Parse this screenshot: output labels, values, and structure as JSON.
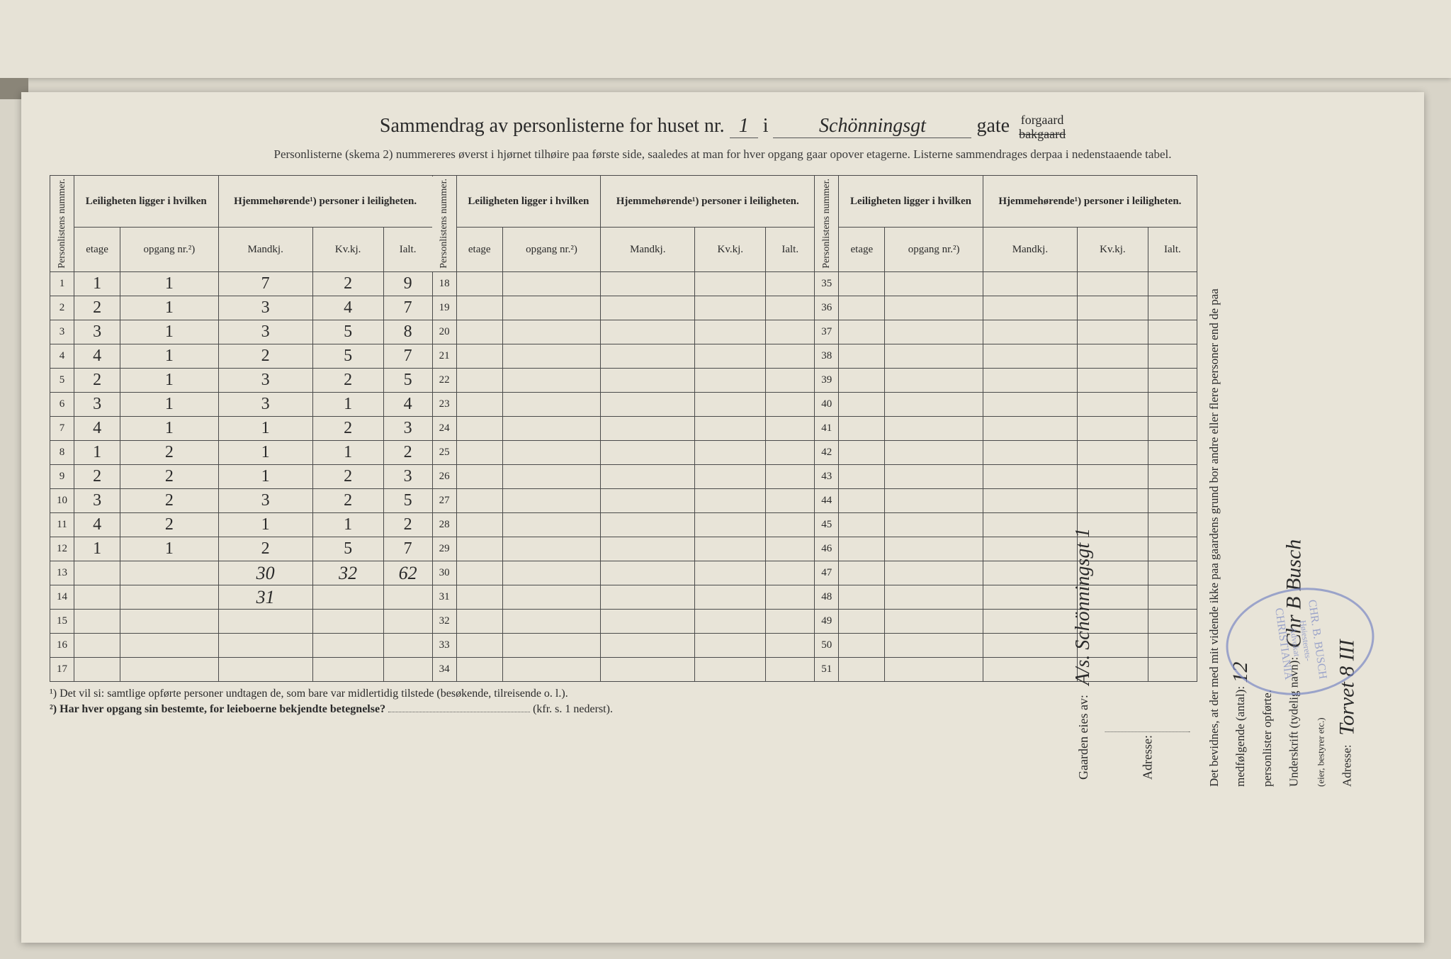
{
  "title": {
    "prefix": "Sammendrag av personlisterne for huset nr.",
    "house_nr": "1",
    "i": "i",
    "street": "Schönningsgt",
    "gate": "gate",
    "forgaard": "forgaard",
    "bakgaard": "bakgaard"
  },
  "subtitle": "Personlisterne (skema 2) nummereres øverst i hjørnet tilhøire paa første side, saaledes at man for hver opgang gaar opover etagerne.  Listerne sammendrages derpaa i nedenstaaende tabel.",
  "headers": {
    "personlistens": "Personlistens nummer.",
    "leiligheten": "Leiligheten ligger i hvilken",
    "hjemme": "Hjemmehørende¹) personer i leiligheten.",
    "etage": "etage",
    "opgang": "opgang nr.²)",
    "mandkj": "Mandkj.",
    "kvkj": "Kv.kj.",
    "ialt": "Ialt."
  },
  "rows": [
    {
      "n": 1,
      "etage": "1",
      "opgang": "1",
      "m": "7",
      "k": "2",
      "i": "9"
    },
    {
      "n": 2,
      "etage": "2",
      "opgang": "1",
      "m": "3",
      "k": "4",
      "i": "7"
    },
    {
      "n": 3,
      "etage": "3",
      "opgang": "1",
      "m": "3",
      "k": "5",
      "i": "8"
    },
    {
      "n": 4,
      "etage": "4",
      "opgang": "1",
      "m": "2",
      "k": "5",
      "i": "7"
    },
    {
      "n": 5,
      "etage": "2",
      "opgang": "1",
      "m": "3",
      "k": "2",
      "i": "5"
    },
    {
      "n": 6,
      "etage": "3",
      "opgang": "1",
      "m": "3",
      "k": "1",
      "i": "4"
    },
    {
      "n": 7,
      "etage": "4",
      "opgang": "1",
      "m": "1",
      "k": "2",
      "i": "3"
    },
    {
      "n": 8,
      "etage": "1",
      "opgang": "2",
      "m": "1",
      "k": "1",
      "i": "2"
    },
    {
      "n": 9,
      "etage": "2",
      "opgang": "2",
      "m": "1",
      "k": "2",
      "i": "3"
    },
    {
      "n": 10,
      "etage": "3",
      "opgang": "2",
      "m": "3",
      "k": "2",
      "i": "5"
    },
    {
      "n": 11,
      "etage": "4",
      "opgang": "2",
      "m": "1",
      "k": "1",
      "i": "2"
    },
    {
      "n": 12,
      "etage": "1",
      "opgang": "1",
      "m": "2",
      "k": "5",
      "i": "7"
    },
    {
      "n": 13,
      "etage": "",
      "opgang": "",
      "m": "30",
      "k": "32",
      "i": "62"
    },
    {
      "n": 14,
      "etage": "",
      "opgang": "",
      "m": "31",
      "k": "",
      "i": ""
    },
    {
      "n": 15,
      "etage": "",
      "opgang": "",
      "m": "",
      "k": "",
      "i": ""
    },
    {
      "n": 16,
      "etage": "",
      "opgang": "",
      "m": "",
      "k": "",
      "i": ""
    },
    {
      "n": 17,
      "etage": "",
      "opgang": "",
      "m": "",
      "k": "",
      "i": ""
    }
  ],
  "col2_nums": [
    18,
    19,
    20,
    21,
    22,
    23,
    24,
    25,
    26,
    27,
    28,
    29,
    30,
    31,
    32,
    33,
    34
  ],
  "col3_nums": [
    35,
    36,
    37,
    38,
    39,
    40,
    41,
    42,
    43,
    44,
    45,
    46,
    47,
    48,
    49,
    50,
    51
  ],
  "footnotes": {
    "f1": "¹)  Det vil si: samtlige opførte personer undtagen de, som bare var midlertidig tilstede (besøkende, tilreisende o. l.).",
    "f2_label": "²)  Har hver opgang sin bestemte, for leieboerne bekjendte betegnelse?",
    "f2_ref": "(kfr. s. 1 nederst)."
  },
  "side": {
    "bevidnes": "Det bevidnes, at der med mit vidende ikke paa gaardens grund bor andre eller flere personer end de paa medfølgende (antal):",
    "antal": "12",
    "personlister": "personlister opførte.",
    "underskrift_label": "Underskrift (tydelig navn):",
    "underskrift": "Chr B Busch",
    "bestyrer": "(eier, bestyrer etc.)",
    "adresse_label": "Adresse:",
    "adresse": "Torvet 8 III"
  },
  "owner": {
    "label": "Gaarden eies av:",
    "name": "A/s. Schönningsgt 1",
    "adresse_label": "Adresse:"
  },
  "stamp": {
    "line1": "CHR. B. BUSCH",
    "line2": "Høiesterets-",
    "line3": "Advokat",
    "line4": "CHRISTIANIA"
  },
  "colors": {
    "paper": "#e8e4d8",
    "bg": "#d8d4c8",
    "ink": "#2a2a2a",
    "border": "#4a4a4a",
    "stamp": "#7a88c4"
  }
}
